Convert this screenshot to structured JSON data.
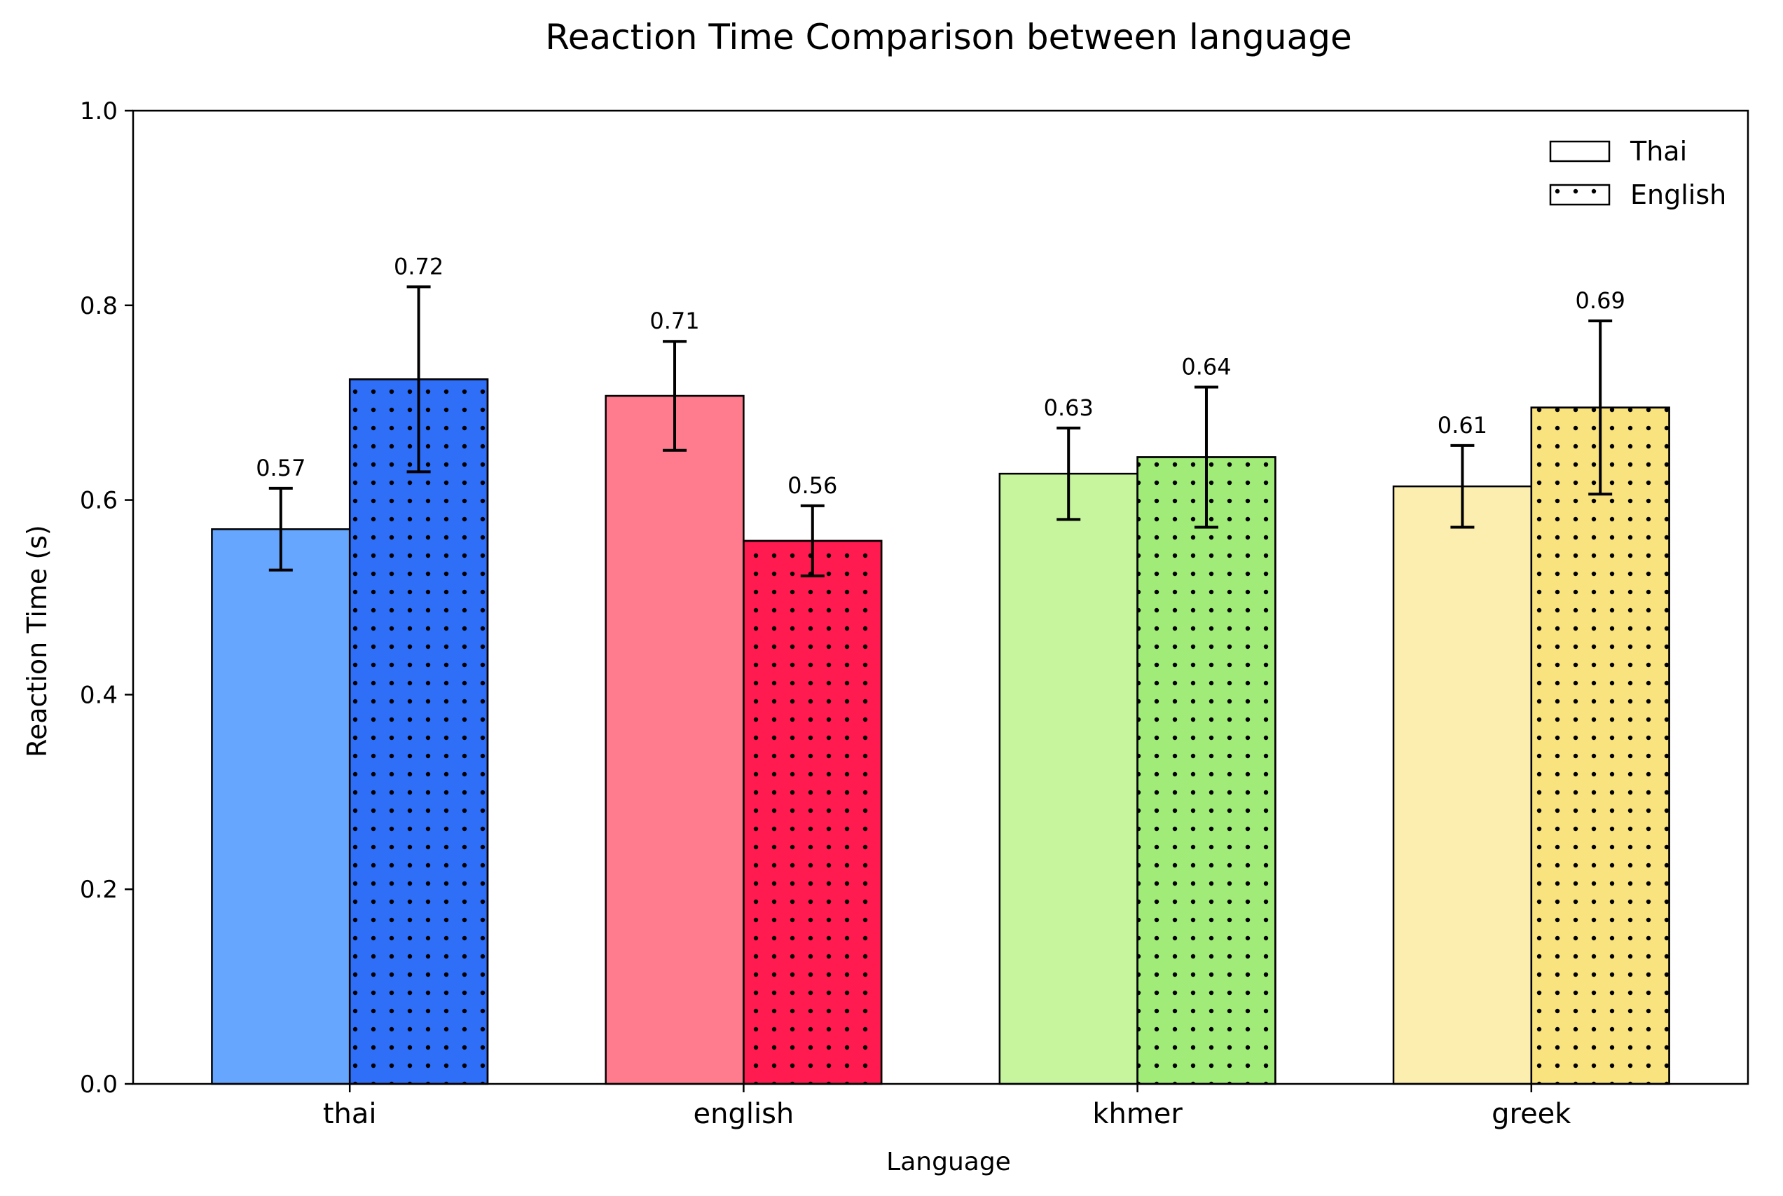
{
  "chart_data": {
    "type": "bar",
    "title": "Reaction Time Comparison between language",
    "xlabel": "Language",
    "ylabel": "Reaction Time (s)",
    "ylim": [
      0,
      1.0
    ],
    "yticks": [
      "0.0",
      "0.2",
      "0.4",
      "0.6",
      "0.8",
      "1.0"
    ],
    "grid": false,
    "legend_position": "top-right",
    "categories": [
      "thai",
      "english",
      "khmer",
      "greek"
    ],
    "series": [
      {
        "name": "Thai",
        "pattern": "solid",
        "values": [
          0.57,
          0.707,
          0.627,
          0.614
        ],
        "errors": [
          0.042,
          0.056,
          0.047,
          0.042
        ],
        "labels": [
          "0.57",
          "0.71",
          "0.63",
          "0.61"
        ],
        "colors": [
          "#66a6ff",
          "#ff7c8e",
          "#c6f59e",
          "#fbeeae"
        ]
      },
      {
        "name": "English",
        "pattern": "dots",
        "values": [
          0.724,
          0.558,
          0.644,
          0.695
        ],
        "errors": [
          0.095,
          0.036,
          0.072,
          0.089
        ],
        "labels": [
          "0.72",
          "0.56",
          "0.64",
          "0.69"
        ],
        "colors": [
          "#2f6ef6",
          "#ff1a4f",
          "#a1ec78",
          "#f9e37e"
        ]
      }
    ]
  }
}
